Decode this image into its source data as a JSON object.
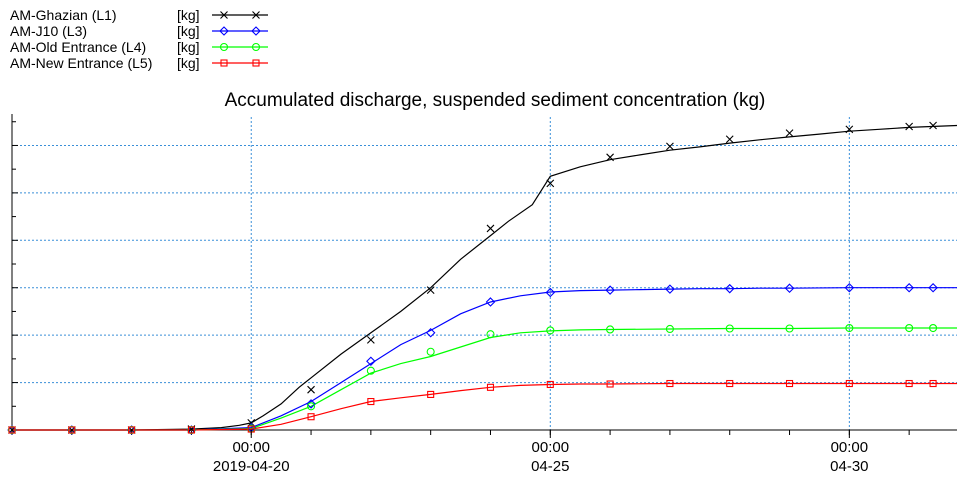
{
  "chart_data": {
    "type": "line",
    "title": "Accumulated discharge, suspended sediment concentration (kg)",
    "x_tick_labels": [
      {
        "time": "00:00",
        "date": "2019-04-20",
        "x_day": 0
      },
      {
        "time": "00:00",
        "date": "04-25",
        "x_day": 5
      },
      {
        "time": "00:00",
        "date": "04-30",
        "x_day": 10
      }
    ],
    "xlim_days": [
      -4,
      11.8
    ],
    "ylim": [
      0,
      6.6
    ],
    "y_grid_values": [
      1,
      2,
      3,
      4,
      5,
      6
    ],
    "y_tick_labels_shown": false,
    "grid": "dotted",
    "legend_placement": "top-left",
    "series": [
      {
        "name": "AM-Ghazian (L1)",
        "unit": "[kg]",
        "color": "#000000",
        "marker": "x",
        "x": [
          -4,
          -3,
          -2,
          -1,
          -0.5,
          -0.2,
          0,
          0.2,
          0.5,
          0.8,
          1,
          1.5,
          2,
          2.5,
          3,
          3.5,
          4,
          4.3,
          4.7,
          5,
          5.5,
          6,
          6.5,
          7,
          7.5,
          8,
          8.5,
          9,
          9.5,
          10,
          10.5,
          11,
          11.8
        ],
        "values": [
          0,
          0,
          0,
          0.02,
          0.05,
          0.1,
          0.15,
          0.3,
          0.55,
          0.9,
          1.1,
          1.6,
          2.05,
          2.5,
          3,
          3.6,
          4.1,
          4.4,
          4.75,
          5.35,
          5.55,
          5.7,
          5.8,
          5.9,
          5.97,
          6.05,
          6.12,
          6.18,
          6.24,
          6.3,
          6.34,
          6.38,
          6.42
        ],
        "marker_x": [
          -4,
          -3,
          -2,
          -1,
          0,
          1,
          2,
          3,
          4,
          5,
          6,
          7,
          8,
          9,
          10,
          11,
          11.4
        ],
        "marker_values": [
          0,
          0,
          0,
          0.02,
          0.15,
          0.85,
          1.9,
          2.95,
          4.25,
          5.2,
          5.75,
          5.98,
          6.13,
          6.26,
          6.34,
          6.4,
          6.42
        ]
      },
      {
        "name": "AM-J10 (L3)",
        "unit": "[kg]",
        "color": "#0000ff",
        "marker": "diamond",
        "x": [
          -4,
          -3,
          -2,
          -1,
          0,
          0.5,
          1,
          1.5,
          2,
          2.5,
          3,
          3.5,
          4,
          4.5,
          5,
          5.5,
          6,
          6.5,
          7,
          7.5,
          8,
          8.5,
          9,
          10,
          11,
          11.8
        ],
        "values": [
          0,
          0,
          0,
          0,
          0.05,
          0.3,
          0.6,
          1,
          1.4,
          1.8,
          2.1,
          2.45,
          2.7,
          2.83,
          2.91,
          2.94,
          2.95,
          2.96,
          2.97,
          2.98,
          2.98,
          2.99,
          2.99,
          3,
          3,
          3
        ],
        "marker_x": [
          -4,
          -3,
          -2,
          -1,
          0,
          1,
          2,
          3,
          4,
          5,
          6,
          7,
          8,
          9,
          10,
          11,
          11.4
        ],
        "marker_values": [
          0,
          0,
          0,
          0,
          0.05,
          0.55,
          1.45,
          2.05,
          2.7,
          2.9,
          2.95,
          2.97,
          2.98,
          2.99,
          3,
          3,
          3
        ]
      },
      {
        "name": "AM-Old Entrance (L4)",
        "unit": "[kg]",
        "color": "#00ff00",
        "marker": "circle",
        "x": [
          -4,
          -3,
          -2,
          -1,
          0,
          0.5,
          1,
          1.5,
          2,
          2.5,
          3,
          3.5,
          4,
          4.5,
          5,
          5.5,
          6,
          7,
          8,
          9,
          10,
          11,
          11.8
        ],
        "values": [
          0,
          0,
          0,
          0,
          0.03,
          0.25,
          0.5,
          0.85,
          1.2,
          1.4,
          1.55,
          1.75,
          1.95,
          2.05,
          2.09,
          2.11,
          2.12,
          2.13,
          2.14,
          2.14,
          2.15,
          2.15,
          2.15
        ],
        "marker_x": [
          -4,
          -3,
          -2,
          -1,
          0,
          1,
          2,
          3,
          4,
          5,
          6,
          7,
          8,
          9,
          10,
          11,
          11.4
        ],
        "marker_values": [
          0,
          0,
          0,
          0,
          0.03,
          0.5,
          1.25,
          1.65,
          2.02,
          2.1,
          2.12,
          2.13,
          2.14,
          2.14,
          2.15,
          2.15,
          2.15
        ]
      },
      {
        "name": "AM-New Entrance (L5)",
        "unit": "[kg]",
        "color": "#ff0000",
        "marker": "square",
        "x": [
          -4,
          -3,
          -2,
          -1,
          0,
          0.5,
          1,
          1.5,
          2,
          2.5,
          3,
          3.5,
          4,
          4.5,
          5,
          5.5,
          6,
          7,
          8,
          9,
          10,
          11,
          11.8
        ],
        "values": [
          0,
          0,
          0,
          0,
          0.02,
          0.12,
          0.28,
          0.45,
          0.6,
          0.68,
          0.75,
          0.83,
          0.9,
          0.94,
          0.96,
          0.97,
          0.97,
          0.98,
          0.98,
          0.98,
          0.98,
          0.98,
          0.98
        ],
        "marker_x": [
          -4,
          -3,
          -2,
          -1,
          0,
          1,
          2,
          3,
          4,
          5,
          6,
          7,
          8,
          9,
          10,
          11,
          11.4
        ],
        "marker_values": [
          0,
          0,
          0,
          0,
          0.02,
          0.28,
          0.6,
          0.75,
          0.9,
          0.96,
          0.97,
          0.98,
          0.98,
          0.98,
          0.98,
          0.98,
          0.98
        ]
      }
    ]
  }
}
